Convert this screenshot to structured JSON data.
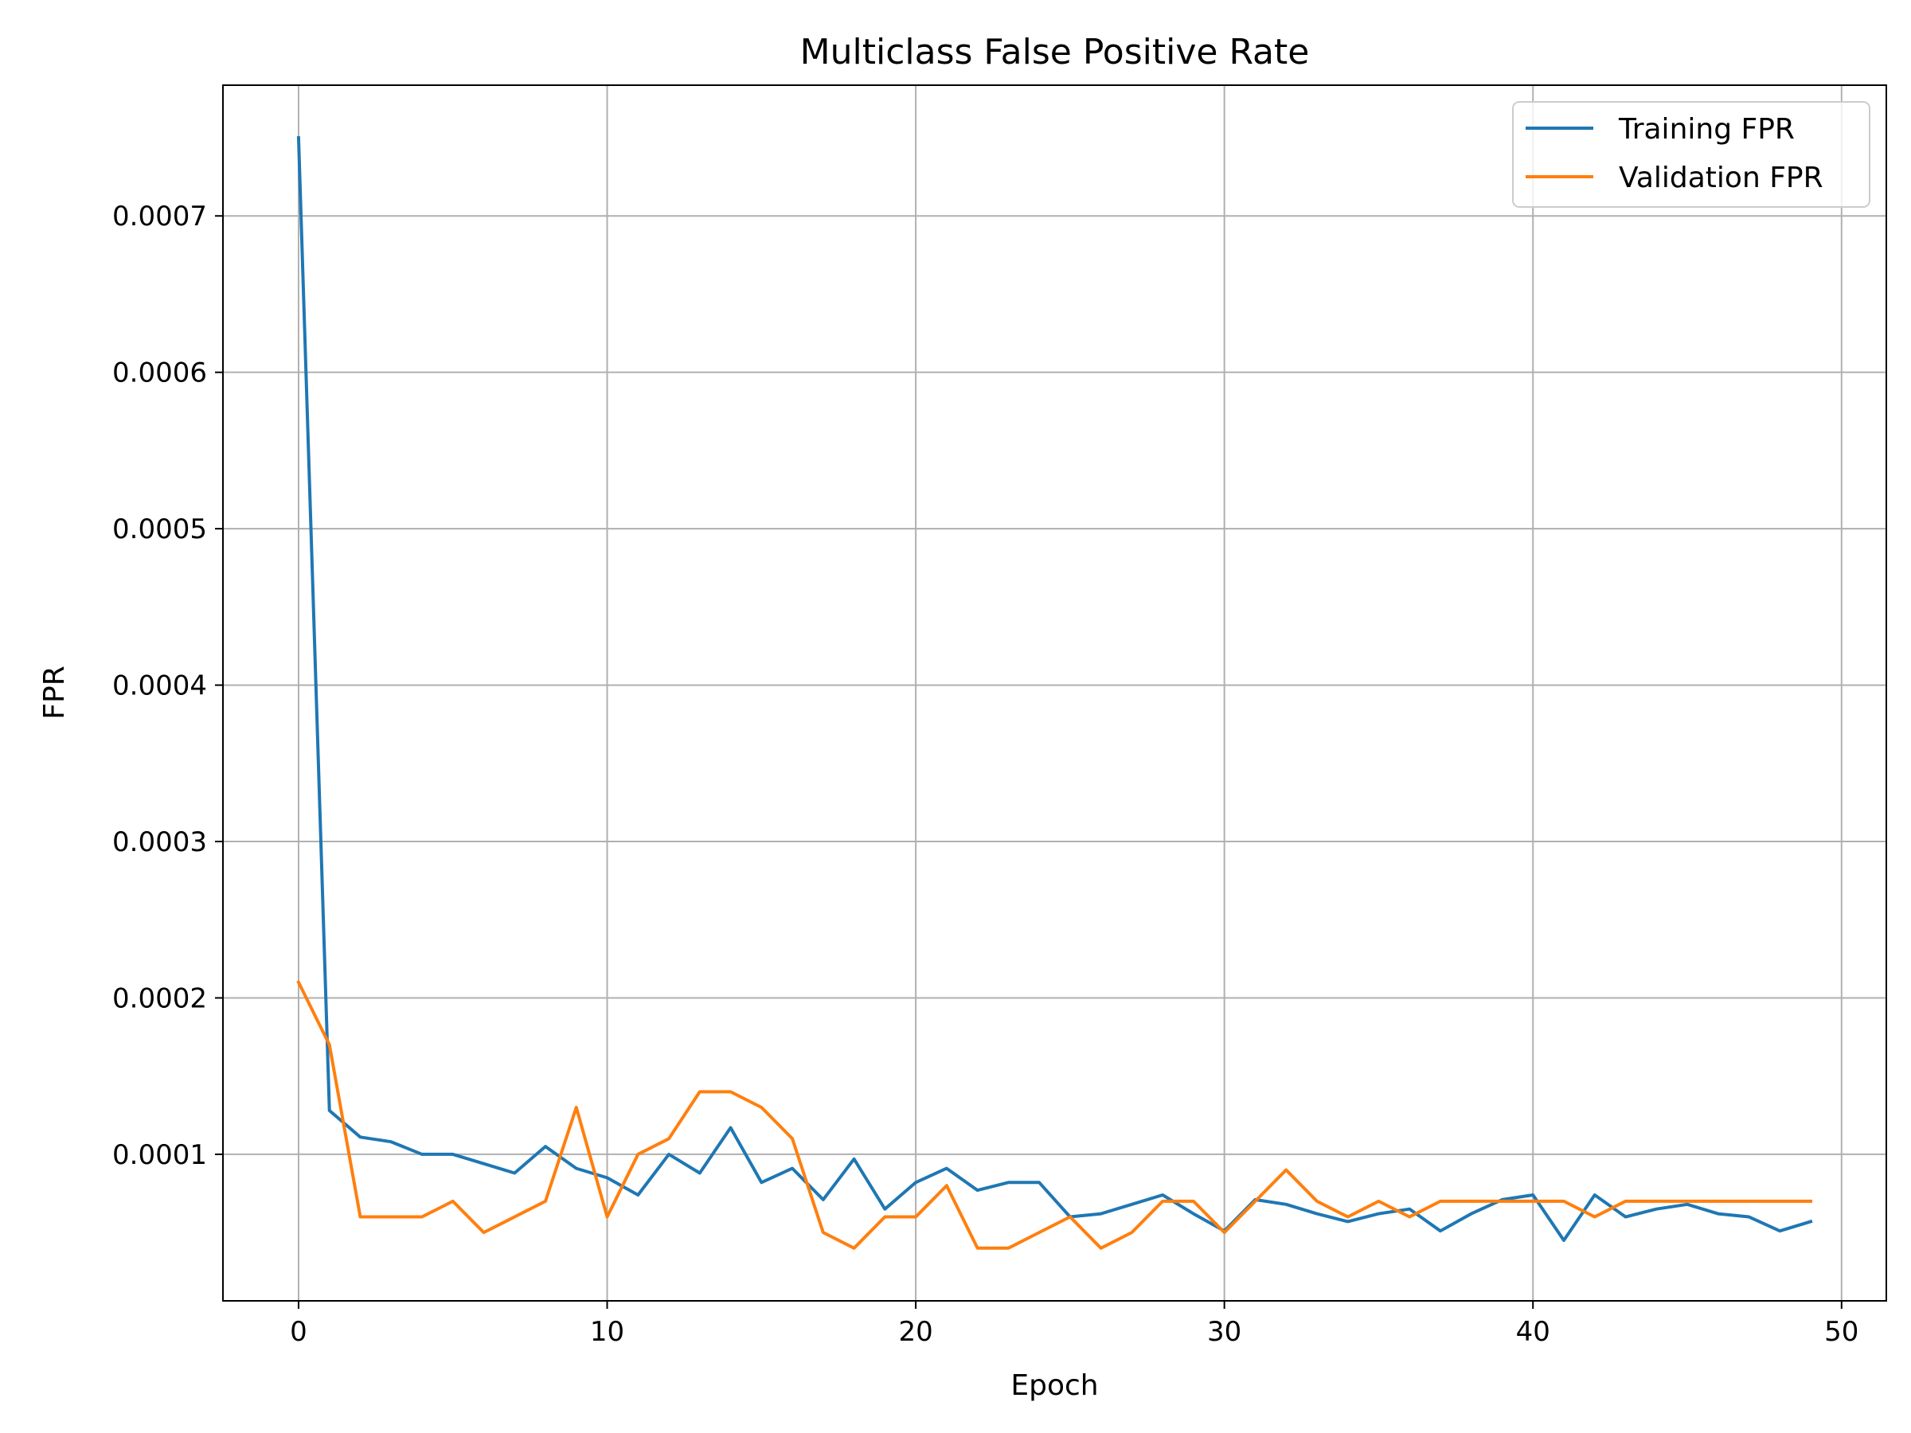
{
  "chart_data": {
    "type": "line",
    "title": "Multiclass False Positive Rate",
    "xlabel": "Epoch",
    "ylabel": "FPR",
    "xlim": [
      -2.45,
      51.45
    ],
    "ylim": [
      6.3e-06,
      0.0007836
    ],
    "xticks": [
      0,
      10,
      20,
      30,
      40,
      50
    ],
    "xtick_labels": [
      "0",
      "10",
      "20",
      "30",
      "40",
      "50"
    ],
    "yticks": [
      0.0001,
      0.0002,
      0.0003,
      0.0004,
      0.0005,
      0.0006,
      0.0007
    ],
    "ytick_labels": [
      "0.0001",
      "0.0002",
      "0.0003",
      "0.0004",
      "0.0005",
      "0.0006",
      "0.0007"
    ],
    "grid": true,
    "legend_position": "upper right",
    "x": [
      0,
      1,
      2,
      3,
      4,
      5,
      6,
      7,
      8,
      9,
      10,
      11,
      12,
      13,
      14,
      15,
      16,
      17,
      18,
      19,
      20,
      21,
      22,
      23,
      24,
      25,
      26,
      27,
      28,
      29,
      30,
      31,
      32,
      33,
      34,
      35,
      36,
      37,
      38,
      39,
      40,
      41,
      42,
      43,
      44,
      45,
      46,
      47,
      48,
      49
    ],
    "series": [
      {
        "name": "Training FPR",
        "color": "#1f77b4",
        "values": [
          0.00075,
          0.000128,
          0.000111,
          0.000108,
          0.0001,
          0.0001,
          9.4e-05,
          8.8e-05,
          0.000105,
          9.1e-05,
          8.5e-05,
          7.4e-05,
          0.0001,
          8.8e-05,
          0.000117,
          8.2e-05,
          9.1e-05,
          7.1e-05,
          9.7e-05,
          6.5e-05,
          8.2e-05,
          9.1e-05,
          7.7e-05,
          8.2e-05,
          8.2e-05,
          6e-05,
          6.2e-05,
          6.8e-05,
          7.4e-05,
          6.2e-05,
          5.1e-05,
          7.1e-05,
          6.8e-05,
          6.2e-05,
          5.7e-05,
          6.2e-05,
          6.5e-05,
          5.1e-05,
          6.2e-05,
          7.1e-05,
          7.4e-05,
          4.5e-05,
          7.4e-05,
          6e-05,
          6.5e-05,
          6.8e-05,
          6.2e-05,
          6e-05,
          5.1e-05,
          5.7e-05
        ]
      },
      {
        "name": "Validation FPR",
        "color": "#ff7f0e",
        "values": [
          0.00021,
          0.00017,
          6e-05,
          6e-05,
          6e-05,
          7e-05,
          5e-05,
          6e-05,
          7e-05,
          0.00013,
          6e-05,
          0.0001,
          0.00011,
          0.00014,
          0.00014,
          0.00013,
          0.00011,
          5e-05,
          4e-05,
          6e-05,
          6e-05,
          8e-05,
          4e-05,
          4e-05,
          5e-05,
          6e-05,
          4e-05,
          5e-05,
          7e-05,
          7e-05,
          5e-05,
          7e-05,
          9e-05,
          7e-05,
          6e-05,
          7e-05,
          6e-05,
          7e-05,
          7e-05,
          7e-05,
          7e-05,
          7e-05,
          6e-05,
          7e-05,
          7e-05,
          7e-05,
          7e-05,
          7e-05,
          7e-05,
          7e-05
        ]
      }
    ]
  }
}
